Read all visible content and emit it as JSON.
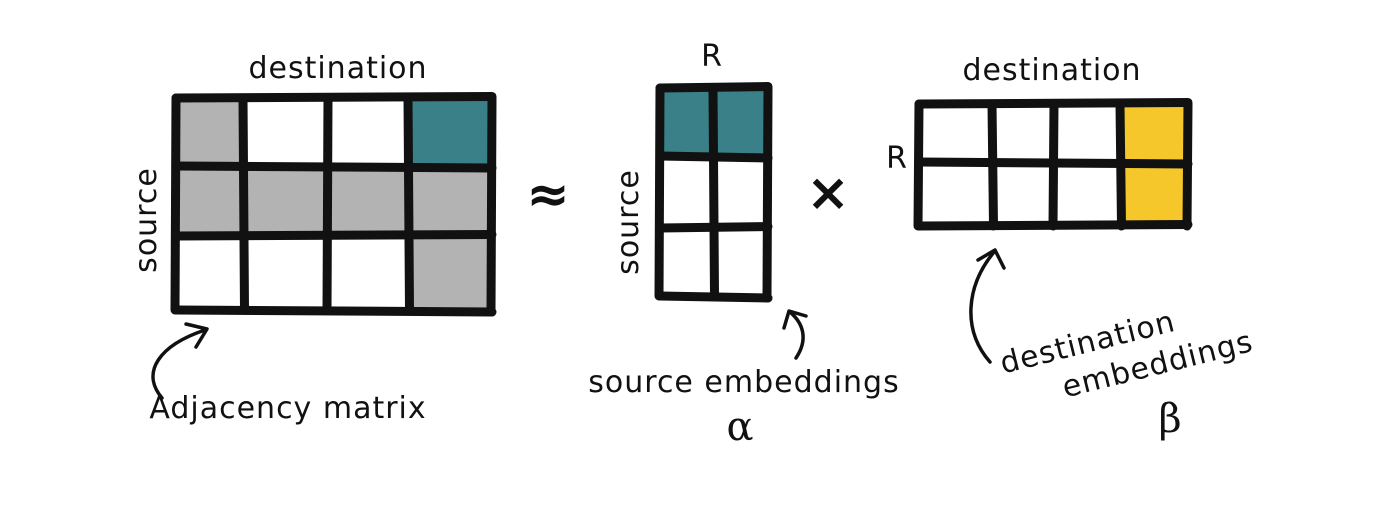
{
  "colors": {
    "teal": "#3a8088",
    "gray": "#b3b3b3",
    "yellow": "#f6c72a",
    "white": "#ffffff",
    "ink": "#111111"
  },
  "adjacency": {
    "top_label": "destination",
    "side_label": "source",
    "caption": "Adjacency matrix",
    "rows": 3,
    "cols": 4,
    "cells": [
      [
        "gray",
        "white",
        "white",
        "teal"
      ],
      [
        "gray",
        "gray",
        "gray",
        "gray"
      ],
      [
        "white",
        "white",
        "white",
        "gray"
      ]
    ]
  },
  "approx_symbol": "≈",
  "source_embeddings": {
    "top_label": "R",
    "side_label": "source",
    "caption": "source embeddings",
    "symbol": "α",
    "rows": 3,
    "cols": 2,
    "cells": [
      [
        "teal",
        "teal"
      ],
      [
        "white",
        "white"
      ],
      [
        "white",
        "white"
      ]
    ]
  },
  "times_symbol": "×",
  "destination_embeddings": {
    "top_label": "destination",
    "side_label": "R",
    "caption_line1": "destination",
    "caption_line2": "embeddings",
    "symbol": "β",
    "rows": 2,
    "cols": 4,
    "cells": [
      [
        "white",
        "white",
        "white",
        "yellow"
      ],
      [
        "white",
        "white",
        "white",
        "yellow"
      ]
    ]
  }
}
